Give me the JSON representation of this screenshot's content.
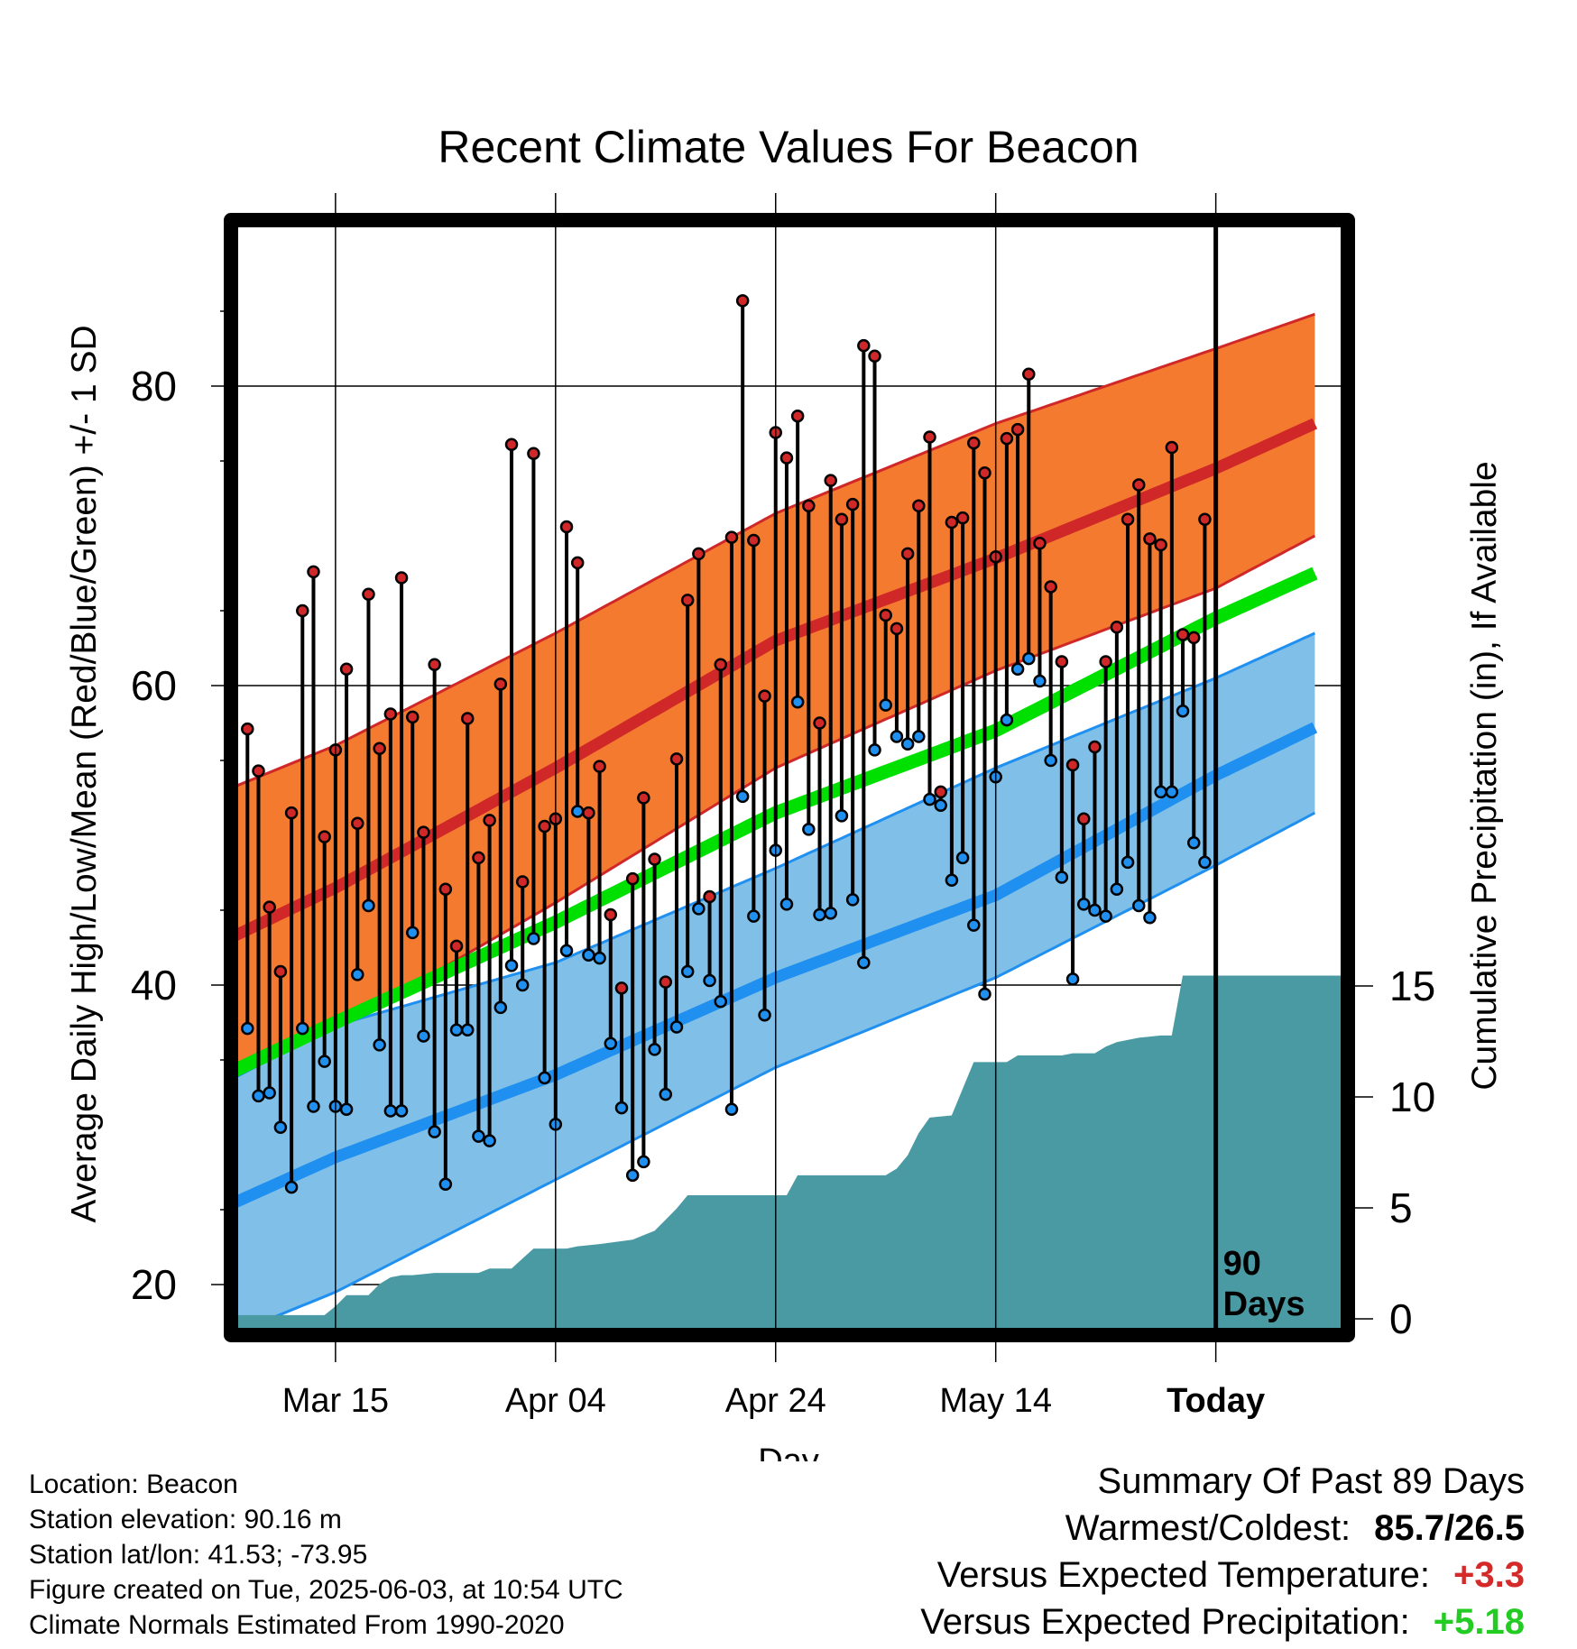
{
  "chart_data": {
    "type": "line",
    "title": "Recent Climate Values For Beacon",
    "xlabel": "Day",
    "ylabel": "Average Daily High/Low/Mean (Red/Blue/Green) +/- 1 SD",
    "y2label": "Cumulative Precipitation (in), If Available",
    "ylim": [
      15,
      90
    ],
    "y2lim": [
      0,
      20
    ],
    "xlim_days": [
      -89,
      12
    ],
    "yticks": [
      "20",
      "40",
      "60",
      "80"
    ],
    "y2ticks": [
      "0",
      "5",
      "10",
      "15"
    ],
    "xticks": [
      {
        "label": "Mar 15",
        "day": -80
      },
      {
        "label": "Apr 04",
        "day": -60
      },
      {
        "label": "Apr 24",
        "day": -40
      },
      {
        "label": "May 14",
        "day": -20
      },
      {
        "label": "Today",
        "day": 0
      }
    ],
    "today_label": [
      "90",
      "Days"
    ],
    "grid": true,
    "colors": {
      "high_band": "#f47a30",
      "high_band_edge": "#d02828",
      "high_mean": "#d02828",
      "low_band": "#80c0e8",
      "low_band_edge": "#2090f0",
      "low_mean": "#2090f0",
      "mean": "#00e000",
      "precip": "#4a9aa4",
      "high_dot": "#d02828",
      "low_dot": "#2090f0"
    },
    "normals": {
      "days": [
        -90,
        -80,
        -60,
        -40,
        -20,
        0,
        9
      ],
      "high_mean": [
        43,
        46.5,
        54.5,
        63,
        68.5,
        74.5,
        77.5
      ],
      "high_sd_upper": [
        53,
        56,
        63.5,
        71.5,
        77.5,
        82.5,
        84.8
      ],
      "high_sd_lower": [
        34,
        37,
        45.5,
        54.5,
        61,
        66.5,
        70
      ],
      "low_mean": [
        25.2,
        28.5,
        34,
        40.5,
        46,
        54,
        57.2
      ],
      "low_sd_upper": [
        33.5,
        37.3,
        41.5,
        47.8,
        54.5,
        60.5,
        63.5
      ],
      "low_sd_lower": [
        16.5,
        19.5,
        27,
        34.5,
        40.5,
        48,
        51.5
      ],
      "mean": [
        34,
        37.5,
        44.2,
        51.5,
        57,
        64.5,
        67.5
      ]
    },
    "series": [
      {
        "name": "High",
        "values": [
          57.1,
          54.3,
          45.2,
          40.9,
          51.5,
          65.0,
          67.6,
          49.9,
          55.7,
          61.1,
          50.8,
          66.1,
          55.8,
          58.1,
          67.2,
          57.9,
          50.2,
          61.4,
          46.4,
          42.6,
          57.8,
          48.5,
          51.0,
          60.1,
          76.1,
          46.9,
          75.5,
          50.6,
          51.1,
          70.6,
          68.2,
          51.5,
          54.6,
          44.7,
          39.8,
          47.1,
          52.5,
          48.4,
          40.2,
          55.1,
          65.7,
          68.8,
          45.9,
          61.4,
          69.9,
          85.7,
          69.7,
          59.3,
          76.9,
          75.2,
          78.0,
          72.0,
          57.5,
          73.7,
          71.1,
          72.1,
          82.7,
          82.0,
          64.7,
          63.8,
          68.8,
          72.0,
          76.6,
          52.9,
          70.9,
          71.2,
          76.2,
          74.2,
          68.6,
          76.5,
          77.1,
          80.8,
          69.5,
          66.6,
          61.6,
          54.7,
          51.1,
          55.9,
          61.6,
          63.9,
          71.1,
          73.4,
          69.8,
          69.4,
          75.9,
          63.4,
          63.2,
          71.1
        ]
      },
      {
        "name": "Low",
        "values": [
          37.1,
          32.6,
          32.8,
          30.5,
          26.5,
          37.1,
          31.9,
          34.9,
          31.9,
          31.7,
          40.7,
          45.3,
          36.0,
          31.6,
          31.6,
          43.5,
          36.6,
          30.2,
          26.7,
          37.0,
          37.0,
          29.9,
          29.6,
          38.5,
          41.3,
          40.0,
          43.1,
          33.8,
          30.7,
          42.3,
          51.6,
          42.0,
          41.8,
          36.1,
          31.8,
          27.3,
          28.2,
          35.7,
          32.7,
          37.2,
          40.9,
          45.1,
          40.3,
          38.9,
          31.7,
          52.6,
          44.6,
          38.0,
          49.0,
          45.4,
          58.9,
          50.4,
          44.7,
          44.8,
          51.3,
          45.7,
          41.5,
          55.7,
          58.7,
          56.6,
          56.1,
          56.6,
          52.4,
          52.0,
          47.0,
          48.5,
          44.0,
          39.4,
          53.9,
          57.7,
          61.1,
          61.8,
          60.3,
          55.0,
          47.2,
          40.4,
          45.4,
          45.0,
          44.6,
          46.4,
          48.2,
          45.3,
          44.5,
          52.9,
          52.9,
          58.3,
          49.5,
          48.2,
          47.3
        ]
      }
    ],
    "precip": {
      "days": [
        -90,
        -81,
        -80,
        -79,
        -77,
        -76,
        -75,
        -74,
        -73,
        -71,
        -70,
        -69,
        -67,
        -66,
        -64,
        -62,
        -59,
        -58,
        -56,
        -53,
        -52,
        -51,
        -50,
        -49,
        -48,
        -47,
        -46,
        -44,
        -42,
        -40,
        -39,
        -38,
        -36,
        -34,
        -33,
        -32,
        -31,
        -30,
        -29,
        -28,
        -27,
        -26,
        -24,
        -22,
        -21,
        -20,
        -19,
        -18,
        -16,
        -14,
        -13,
        -12,
        -11,
        -10,
        -9,
        -7,
        -5,
        -4,
        -3,
        2,
        9
      ],
      "total": [
        0.9,
        0.9,
        1.3,
        1.8,
        1.8,
        2.3,
        2.6,
        2.7,
        2.7,
        2.8,
        2.8,
        2.8,
        2.8,
        3.0,
        3.0,
        3.9,
        3.9,
        4.0,
        4.1,
        4.3,
        4.5,
        4.7,
        5.2,
        5.7,
        6.3,
        6.3,
        6.3,
        6.3,
        6.3,
        6.3,
        6.3,
        7.2,
        7.2,
        7.2,
        7.2,
        7.2,
        7.2,
        7.2,
        7.5,
        8.1,
        9.1,
        9.8,
        9.9,
        12.3,
        12.3,
        12.3,
        12.3,
        12.6,
        12.6,
        12.6,
        12.7,
        12.7,
        12.7,
        13.0,
        13.2,
        13.4,
        13.5,
        13.5,
        16.2,
        16.2,
        16.2
      ]
    }
  },
  "station_info": [
    "Location: Beacon",
    "Station elevation: 90.16 m",
    "Station lat/lon: 41.53; -73.95",
    "Figure created on Tue, 2025-06-03, at 10:54 UTC",
    "Climate Normals Estimated From 1990-2020"
  ],
  "summary": {
    "title": "Summary Of Past 89 Days",
    "warmest_coldest_label": "Warmest/Coldest:",
    "warmest_coldest_value": "85.7/26.5",
    "temp_label": "Versus Expected Temperature:",
    "temp_value": "+3.3",
    "precip_label": "Versus Expected Precipitation:",
    "precip_value": "+5.18"
  }
}
